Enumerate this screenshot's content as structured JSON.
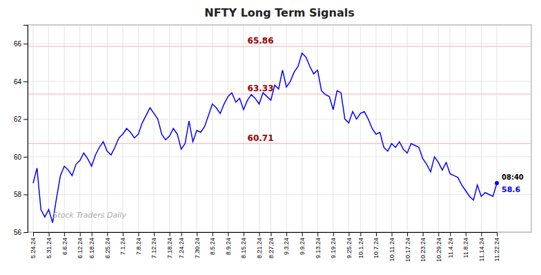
{
  "chart_data": {
    "type": "line",
    "title": "NFTY Long Term Signals",
    "color": "blue",
    "grid": true,
    "ylim": [
      56,
      67
    ],
    "yticks": [
      56,
      58,
      60,
      62,
      64,
      66
    ],
    "categories": [
      "5.24.24",
      null,
      null,
      null,
      "5.31.24",
      null,
      null,
      null,
      "6.6.24",
      null,
      null,
      null,
      "6.12.24",
      null,
      null,
      "6.18.24",
      null,
      null,
      null,
      "6.25.24",
      null,
      null,
      null,
      "7.1.24",
      null,
      null,
      null,
      "7.8.24",
      null,
      null,
      null,
      "7.12.24",
      null,
      null,
      null,
      "7.18.24",
      null,
      null,
      "7.24.24",
      null,
      null,
      null,
      "7.30.24",
      null,
      null,
      null,
      "8.5.24",
      null,
      null,
      null,
      "8.9.24",
      null,
      null,
      null,
      "8.15.24",
      null,
      null,
      null,
      "8.21.24",
      null,
      null,
      "8.27.24",
      null,
      null,
      null,
      "9.3.24",
      null,
      null,
      null,
      "9.9.24",
      null,
      null,
      null,
      "9.13.24",
      null,
      null,
      null,
      "9.19.24",
      null,
      null,
      null,
      "9.25.24",
      null,
      null,
      "10.1.24",
      null,
      null,
      null,
      "10.7.24",
      null,
      null,
      null,
      "10.11.24",
      null,
      null,
      null,
      "10.17.24",
      null,
      null,
      null,
      "10.23.24",
      null,
      null,
      null,
      "10.29.24",
      null,
      null,
      "11.4.24",
      null,
      null,
      null,
      "11.8.24",
      null,
      null,
      null,
      "11.14.24",
      null,
      null,
      null,
      "11.22.24"
    ],
    "values": [
      58.6,
      59.4,
      57.2,
      56.8,
      57.2,
      56.5,
      57.8,
      59.0,
      59.5,
      59.3,
      59.0,
      59.6,
      59.8,
      60.2,
      59.9,
      59.5,
      60.1,
      60.5,
      60.8,
      60.3,
      60.1,
      60.5,
      61.0,
      61.2,
      61.5,
      61.3,
      61.0,
      61.2,
      61.8,
      62.2,
      62.6,
      62.3,
      62.0,
      61.2,
      60.9,
      61.1,
      61.5,
      61.2,
      60.4,
      60.7,
      61.9,
      60.8,
      61.4,
      61.3,
      61.6,
      62.2,
      62.8,
      62.6,
      62.3,
      62.8,
      63.2,
      63.4,
      62.9,
      63.1,
      62.5,
      63.0,
      63.3,
      63.1,
      62.8,
      63.4,
      63.2,
      63.0,
      63.8,
      63.6,
      64.6,
      63.7,
      64.0,
      64.5,
      64.8,
      65.5,
      65.3,
      64.8,
      64.4,
      64.6,
      63.5,
      63.3,
      63.2,
      62.5,
      63.5,
      63.4,
      62.0,
      61.8,
      62.4,
      62.0,
      62.3,
      62.4,
      62.0,
      61.5,
      61.2,
      61.3,
      60.5,
      60.3,
      60.7,
      60.5,
      60.8,
      60.4,
      60.2,
      60.7,
      60.6,
      60.5,
      59.9,
      59.6,
      59.2,
      60.0,
      59.7,
      59.3,
      59.7,
      59.1,
      59.0,
      58.9,
      58.5,
      58.2,
      57.9,
      57.7,
      58.5,
      57.9,
      58.1,
      58.0,
      57.9,
      58.6
    ],
    "annotations": [
      {
        "y": 65.86,
        "label": "65.86",
        "color": "#990000",
        "line_color": "#ffbbbb"
      },
      {
        "y": 63.33,
        "label": "63.33",
        "color": "#990000",
        "line_color": "#ffbbbb"
      },
      {
        "y": 60.71,
        "label": "60.71",
        "color": "#990000",
        "line_color": "#ffbbbb"
      }
    ],
    "last_label": {
      "time": "08:40",
      "price": "58.6",
      "time_color": "black",
      "price_color": "blue"
    },
    "watermark": "Stock Traders Daily"
  }
}
